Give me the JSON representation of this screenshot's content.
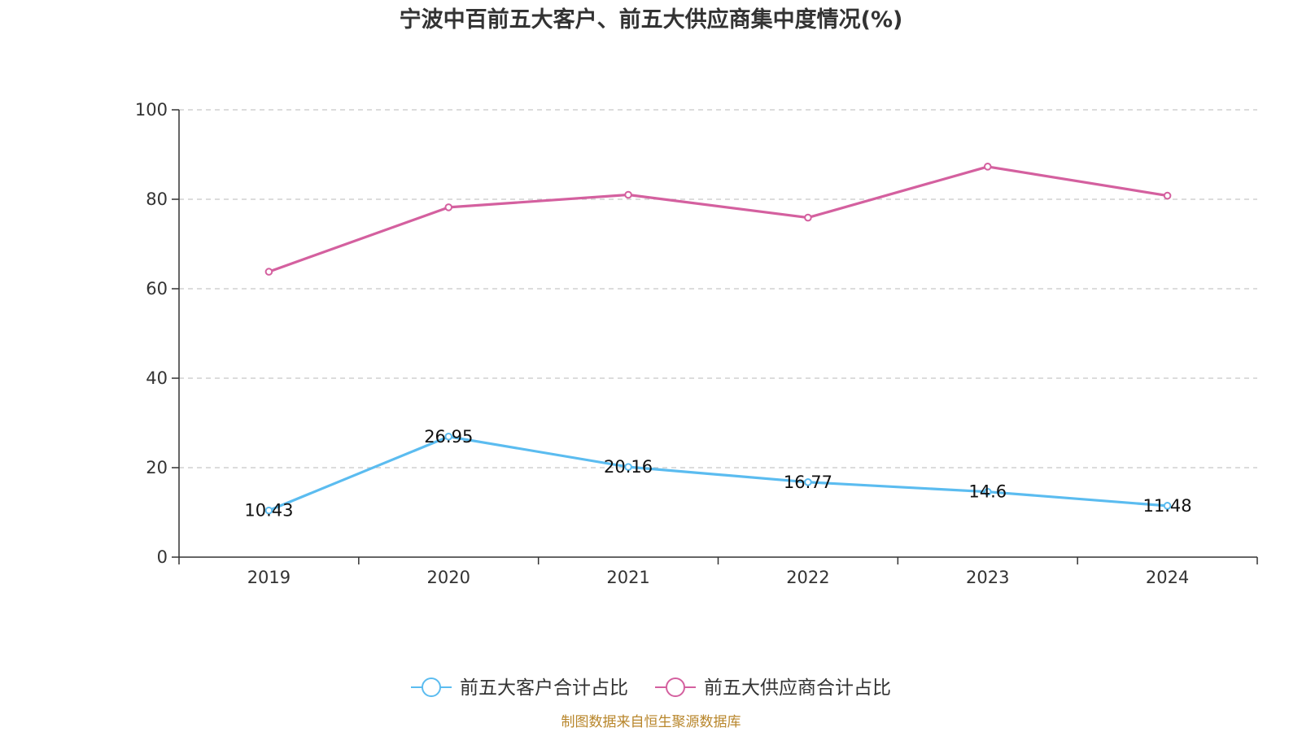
{
  "chart_data": {
    "type": "line",
    "title": "宁波中百前五大客户、前五大供应商集中度情况(%)",
    "categories": [
      "2019",
      "2020",
      "2021",
      "2022",
      "2023",
      "2024"
    ],
    "yticks": [
      "0",
      "20",
      "40",
      "60",
      "80",
      "100"
    ],
    "ylim": [
      0,
      100
    ],
    "grid": true,
    "legend_position": "bottom",
    "series": [
      {
        "name": "前五大客户合计占比",
        "color": "#5bbcf0",
        "values": [
          10.43,
          26.95,
          20.16,
          16.77,
          14.6,
          11.48
        ],
        "labels": [
          "10.43",
          "26.95",
          "20.16",
          "16.77",
          "14.6",
          "11.48"
        ]
      },
      {
        "name": "前五大供应商合计占比",
        "color": "#d4609f",
        "values": [
          63.8,
          78.2,
          81.0,
          75.9,
          87.3,
          80.8
        ]
      }
    ],
    "source": "制图数据来自恒生聚源数据库"
  }
}
